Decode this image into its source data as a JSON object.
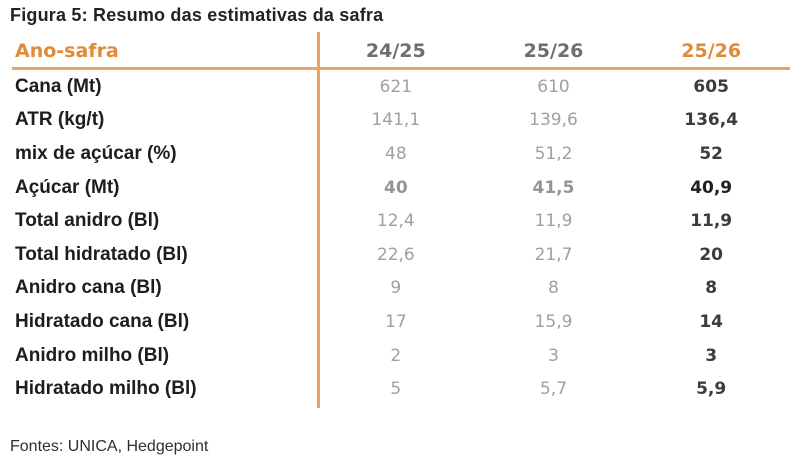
{
  "colors": {
    "accent_orange_text": "#E08A3C",
    "accent_orange_line": "#E9A45F",
    "value_gray": "#9EA0A2",
    "value_dark": "#3C3C3E",
    "header_gray": "#6E6E70",
    "label_black": "#1D1D1F"
  },
  "chart_data": {
    "type": "table",
    "title": "Figura 5: Resumo das estimativas da safra",
    "header": {
      "row_label": "Ano-safra",
      "columns": [
        "24/25",
        "25/26",
        "25/26"
      ]
    },
    "rows": [
      {
        "label": "Cana (Mt)",
        "values": [
          "621",
          "610",
          "605"
        ],
        "bold": false
      },
      {
        "label": "ATR (kg/t)",
        "values": [
          "141,1",
          "139,6",
          "136,4"
        ],
        "bold": false
      },
      {
        "label": "mix de açúcar (%)",
        "values": [
          "48",
          "51,2",
          "52"
        ],
        "bold": false
      },
      {
        "label": "Açúcar (Mt)",
        "values": [
          "40",
          "41,5",
          "40,9"
        ],
        "bold": true
      },
      {
        "label": "Total anidro (Bl)",
        "values": [
          "12,4",
          "11,9",
          "11,9"
        ],
        "bold": false
      },
      {
        "label": "Total hidratado (Bl)",
        "values": [
          "22,6",
          "21,7",
          "20"
        ],
        "bold": false
      },
      {
        "label": "Anidro cana (Bl)",
        "values": [
          "9",
          "8",
          "8"
        ],
        "bold": false
      },
      {
        "label": "Hidratado cana (Bl)",
        "values": [
          "17",
          "15,9",
          "14"
        ],
        "bold": false
      },
      {
        "label": "Anidro milho (Bl)",
        "values": [
          "2",
          "3",
          "3"
        ],
        "bold": false
      },
      {
        "label": "Hidratado milho (Bl)",
        "values": [
          "5",
          "5,7",
          "5,9"
        ],
        "bold": false
      }
    ],
    "source": "Fontes: UNICA, Hedgepoint"
  }
}
